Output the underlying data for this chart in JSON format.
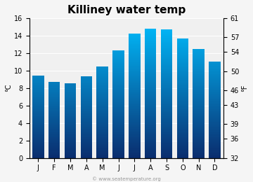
{
  "title": "Killiney water temp",
  "months": [
    "J",
    "F",
    "M",
    "A",
    "M",
    "J",
    "J",
    "A",
    "S",
    "O",
    "N",
    "D"
  ],
  "values_c": [
    9.4,
    8.7,
    8.5,
    9.3,
    10.5,
    12.3,
    14.2,
    14.8,
    14.7,
    13.7,
    12.5,
    11.0
  ],
  "ylim_c": [
    0,
    16
  ],
  "ylim_f": [
    32,
    61
  ],
  "yticks_c": [
    0,
    2,
    4,
    6,
    8,
    10,
    12,
    14,
    16
  ],
  "yticks_f": [
    32,
    36,
    39,
    43,
    46,
    50,
    54,
    57,
    61
  ],
  "ylabel_left": "°C",
  "ylabel_right": "°F",
  "bar_color_top": "#00bfff",
  "bar_color_bottom": "#0a2d6e",
  "bg_color": "#f5f5f5",
  "plot_bg_color": "#f0f0f0",
  "title_fontsize": 11,
  "axis_fontsize": 7,
  "tick_fontsize": 7,
  "watermark": "© www.seatemperature.org"
}
